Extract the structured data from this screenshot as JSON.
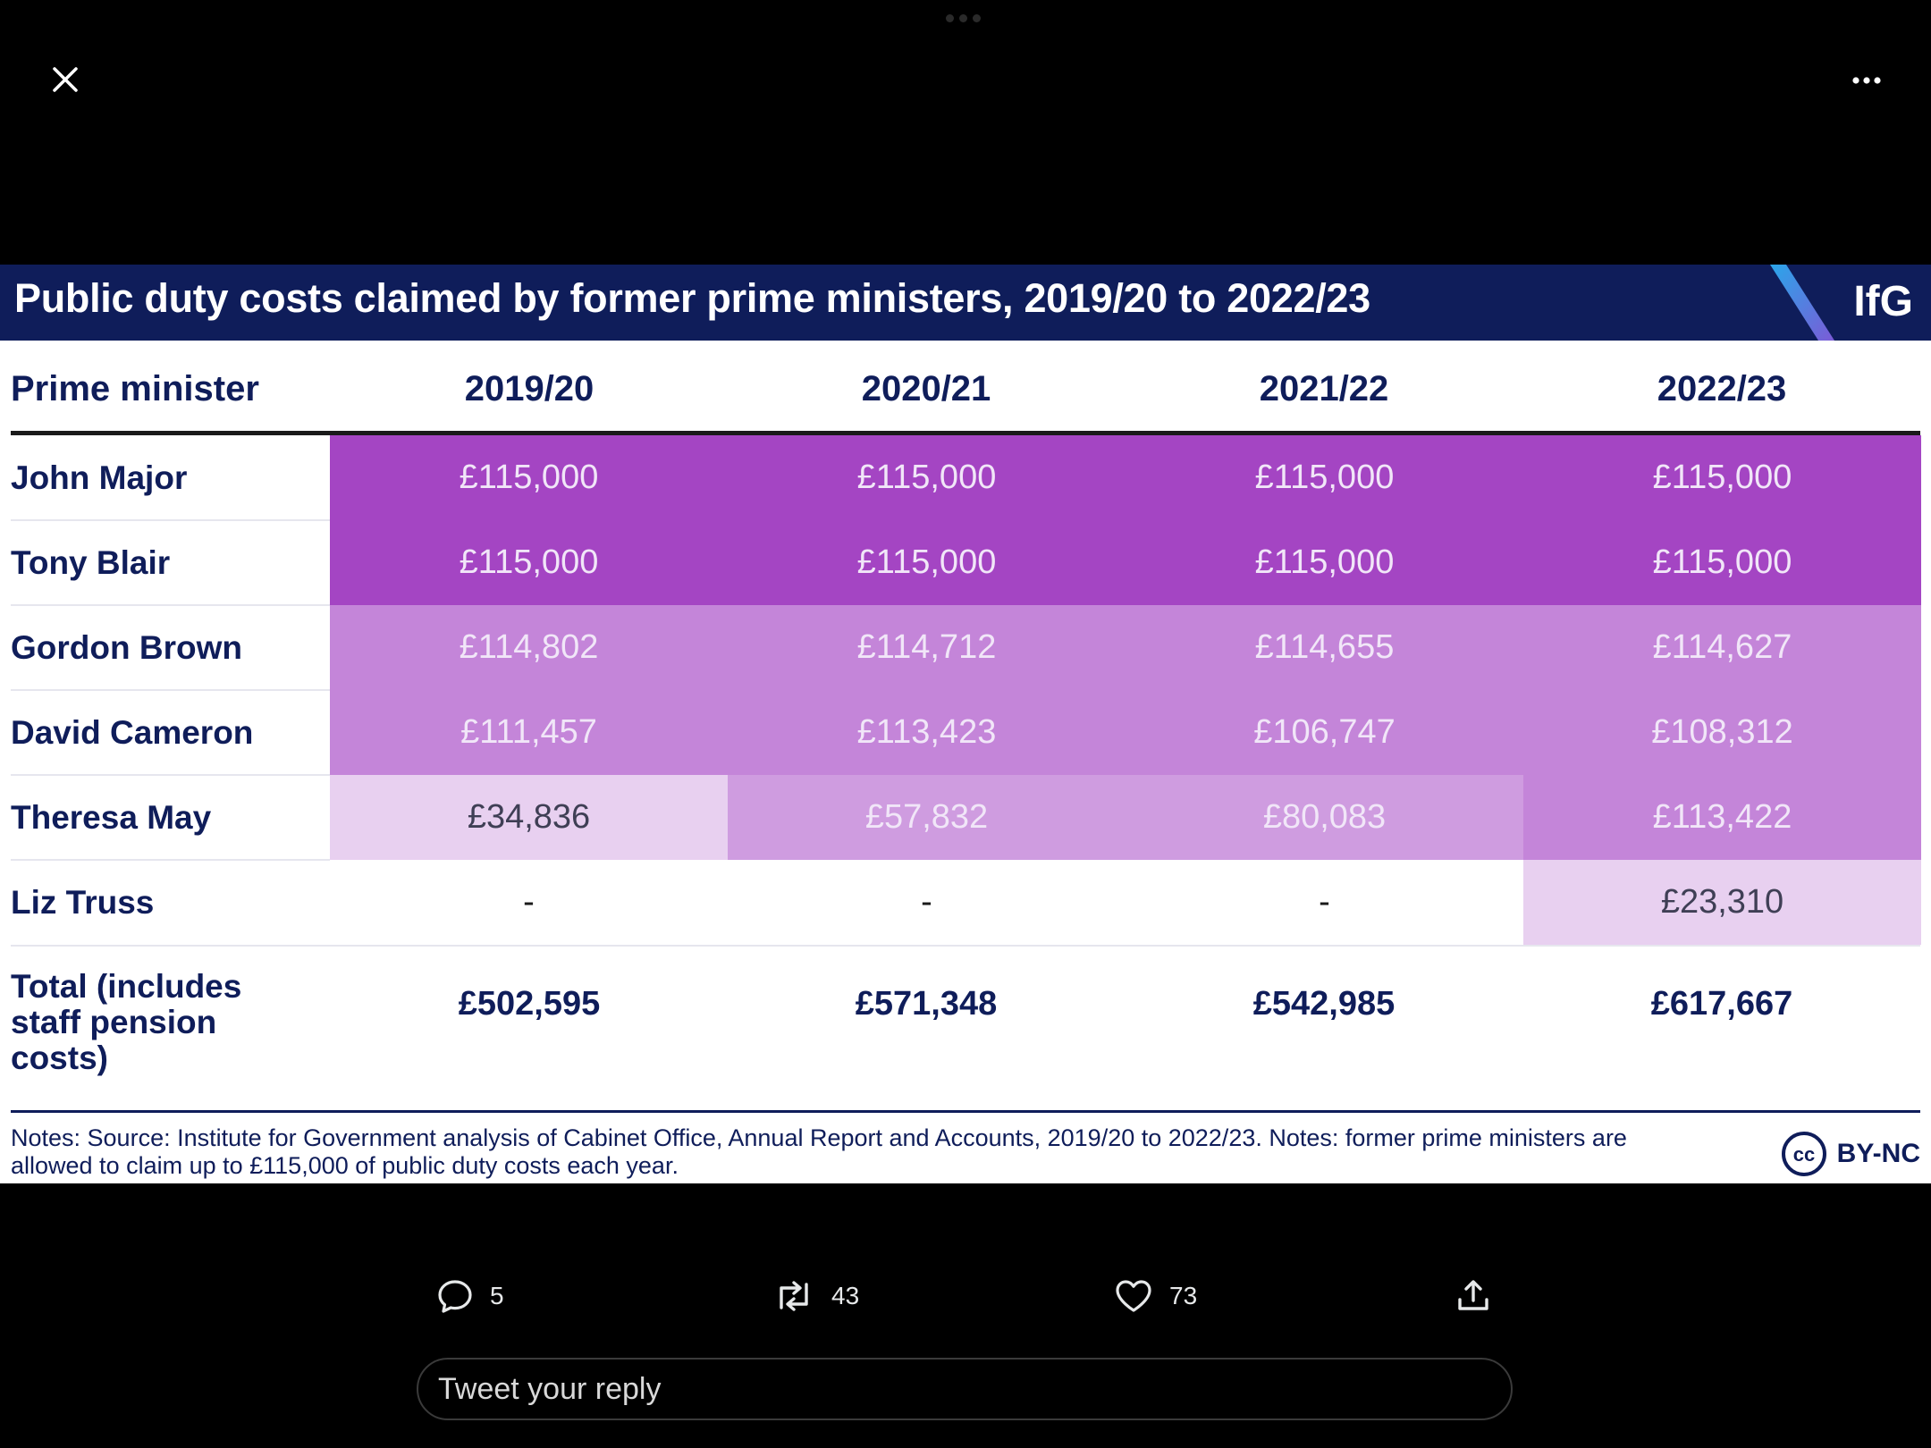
{
  "ui": {
    "close_icon": "close-icon",
    "more_icon": "more-horizontal-icon"
  },
  "table": {
    "title": "Public duty costs claimed by former prime ministers, 2019/20 to 2022/23",
    "brand": "IfG",
    "col_header": "Prime minister",
    "years": [
      "2019/20",
      "2020/21",
      "2021/22",
      "2022/23"
    ],
    "rows": [
      {
        "name": "John Major",
        "values": [
          "£115,000",
          "£115,000",
          "£115,000",
          "£115,000"
        ]
      },
      {
        "name": "Tony Blair",
        "values": [
          "£115,000",
          "£115,000",
          "£115,000",
          "£115,000"
        ]
      },
      {
        "name": "Gordon Brown",
        "values": [
          "£114,802",
          "£114,712",
          "£114,655",
          "£114,627"
        ]
      },
      {
        "name": "David Cameron",
        "values": [
          "£111,457",
          "£113,423",
          "£106,747",
          "£108,312"
        ]
      },
      {
        "name": "Theresa May",
        "values": [
          "£34,836",
          "£57,832",
          "£80,083",
          "£113,422"
        ]
      },
      {
        "name": "Liz Truss",
        "values": [
          "-",
          "-",
          "-",
          "£23,310"
        ]
      }
    ],
    "total_label": "Total (includes staff pension costs)",
    "totals": [
      "£502,595",
      "£571,348",
      "£542,985",
      "£617,667"
    ],
    "notes": "Notes: Source: Institute for Government analysis of Cabinet Office, Annual Report and Accounts, 2019/20 to 2022/23. Notes: former prime ministers are allowed to claim up to £115,000 of public duty costs each year.",
    "license": "BY-NC",
    "license_badge": "cc",
    "colors": {
      "header_bg": "#0f1d5a",
      "max": "#a445c3",
      "high": "#c485d9",
      "mid": "#cf9ce0",
      "low": "#e8d0f0"
    }
  },
  "actions": {
    "replies": "5",
    "retweets": "43",
    "likes": "73"
  },
  "reply": {
    "placeholder": "Tweet your reply"
  }
}
